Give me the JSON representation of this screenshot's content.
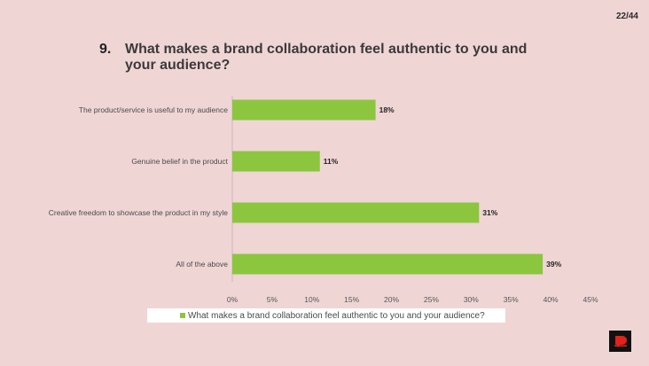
{
  "page": {
    "number": "22/44"
  },
  "question": {
    "number": "9.",
    "title": "What makes a brand collaboration feel authentic to you and your audience?"
  },
  "colors": {
    "bar": "#8cc63f",
    "background": "#f0d5d5",
    "grid": "#d8c0c0"
  },
  "icons": {
    "logo": "brand-logo-icon"
  },
  "chart_data": {
    "type": "bar",
    "orientation": "horizontal",
    "categories": [
      "The product/service is useful to my audience",
      "Genuine belief in the product",
      "Creative freedom to showcase the product in my style",
      "All of the above"
    ],
    "series": [
      {
        "name": "What makes a brand collaboration feel authentic to you and your audience?",
        "values": [
          18,
          11,
          31,
          39
        ]
      }
    ],
    "value_labels": [
      "18%",
      "11%",
      "31%",
      "39%"
    ],
    "xlim": [
      0,
      45
    ],
    "x_ticks": [
      "0%",
      "5%",
      "10%",
      "15%",
      "20%",
      "25%",
      "30%",
      "35%",
      "40%",
      "45%"
    ],
    "grid": false,
    "legend": "bottom"
  }
}
